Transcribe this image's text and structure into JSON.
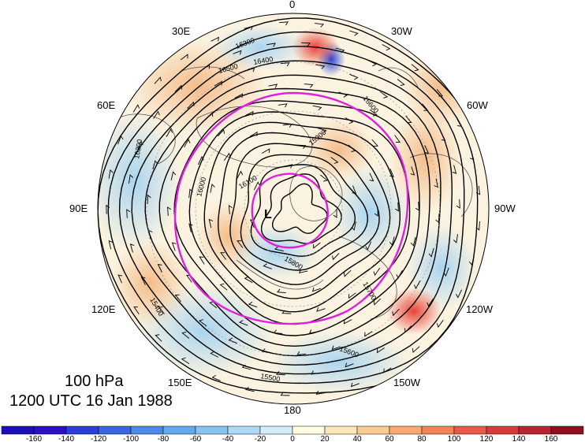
{
  "map": {
    "projection": "north-polar-stereographic",
    "level_text": "100 hPa",
    "valid_text": "1200 UTC 16 Jan 1988",
    "longitude_labels": [
      "0",
      "30W",
      "60W",
      "90W",
      "120W",
      "150W",
      "180",
      "150E",
      "120E",
      "90E",
      "60E",
      "30E"
    ],
    "contour_labels": [
      "16300",
      "16400",
      "16500",
      "16200",
      "16100",
      "16000",
      "15900",
      "15800",
      "15700",
      "15600",
      "15500",
      "15400",
      "16600"
    ],
    "low_center_label": "L",
    "height_contour_color": "#000000",
    "highlight_contour_color": "#e020e0",
    "coastline_color": "#555555",
    "anomaly_scale_description": "shaded anomaly"
  },
  "colorbar": {
    "tick_labels": [
      "-160",
      "-140",
      "-120",
      "-100",
      "-80",
      "-60",
      "-40",
      "-20",
      "0",
      "20",
      "40",
      "60",
      "80",
      "100",
      "120",
      "140",
      "160"
    ],
    "colors": [
      "#2a0fc8",
      "#2c3ed8",
      "#3a66e0",
      "#4c8ae8",
      "#64a8ee",
      "#88c4f2",
      "#acdaf6",
      "#d2eefa",
      "#fffce0",
      "#fde6b8",
      "#fbcc92",
      "#f7aa70",
      "#f28458",
      "#ea5a48",
      "#d63c3c",
      "#b82430",
      "#8e1020"
    ]
  }
}
